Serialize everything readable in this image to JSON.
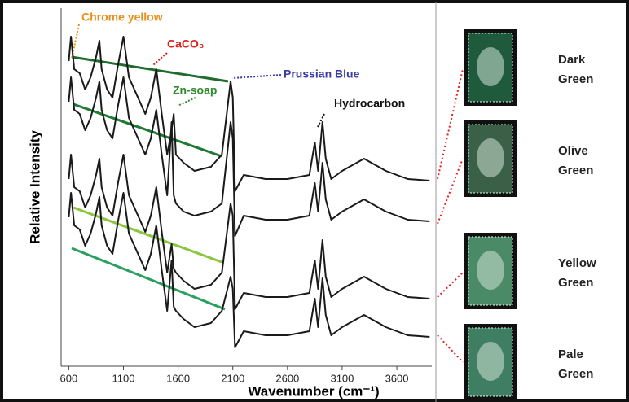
{
  "chart_data": {
    "type": "line",
    "x_label": "Wavenumber (cm⁻¹)",
    "y_label": "Relative Intensity",
    "xlim": [
      530,
      3920
    ],
    "ylim": [
      0,
      440
    ],
    "xticks": [
      600,
      1100,
      1600,
      2100,
      2600,
      3100,
      3600
    ],
    "x": [
      600,
      620,
      650,
      700,
      750,
      800,
      850,
      880,
      900,
      950,
      1000,
      1050,
      1100,
      1150,
      1200,
      1300,
      1350,
      1400,
      1450,
      1500,
      1540,
      1560,
      1580,
      1650,
      1750,
      1900,
      2000,
      2080,
      2100,
      2120,
      2200,
      2400,
      2600,
      2800,
      2850,
      2880,
      2920,
      2950,
      3000,
      3100,
      3300,
      3500,
      3700,
      3900
    ],
    "series": [
      {
        "color": "#1a1a1a",
        "values": [
          375,
          405,
          365,
          360,
          340,
          355,
          380,
          400,
          365,
          340,
          330,
          370,
          405,
          355,
          340,
          310,
          330,
          365,
          310,
          260,
          290,
          310,
          260,
          250,
          240,
          245,
          260,
          350,
          330,
          215,
          235,
          230,
          230,
          235,
          275,
          240,
          300,
          255,
          230,
          240,
          255,
          240,
          230,
          228
        ]
      },
      {
        "color": "#1a1a1a",
        "values": [
          325,
          355,
          315,
          310,
          290,
          305,
          330,
          350,
          315,
          290,
          280,
          320,
          355,
          305,
          290,
          260,
          280,
          315,
          260,
          210,
          300,
          210,
          200,
          190,
          185,
          190,
          200,
          300,
          280,
          160,
          185,
          180,
          180,
          185,
          225,
          190,
          250,
          205,
          180,
          190,
          205,
          190,
          180,
          178
        ]
      },
      {
        "color": "#1a1a1a",
        "values": [
          230,
          260,
          220,
          215,
          195,
          210,
          235,
          255,
          220,
          195,
          185,
          225,
          260,
          210,
          195,
          165,
          185,
          220,
          165,
          115,
          150,
          120,
          115,
          105,
          95,
          100,
          115,
          200,
          185,
          70,
          90,
          85,
          85,
          90,
          130,
          95,
          155,
          110,
          85,
          95,
          110,
          95,
          85,
          83
        ]
      },
      {
        "color": "#1a1a1a",
        "values": [
          183,
          213,
          173,
          168,
          148,
          163,
          188,
          208,
          173,
          148,
          138,
          178,
          213,
          163,
          148,
          118,
          138,
          173,
          118,
          68,
          130,
          73,
          68,
          58,
          48,
          53,
          68,
          110,
          95,
          23,
          43,
          38,
          38,
          43,
          83,
          48,
          108,
          63,
          38,
          48,
          63,
          48,
          38,
          36
        ]
      }
    ],
    "annotations": [
      {
        "text": "Chrome yellow",
        "color": "#e8901a"
      },
      {
        "text": "CaCO₃",
        "color": "#e0201a"
      },
      {
        "text": "Prussian Blue",
        "color": "#3a3aa8"
      },
      {
        "text": "Zn-soap",
        "color": "#2e8b2e"
      },
      {
        "text": "Hydrocarbon",
        "color": "#111111"
      }
    ]
  },
  "stamps": [
    {
      "label": [
        "Dark",
        "Green"
      ],
      "color": "#1f5a3c"
    },
    {
      "label": [
        "Olive",
        "Green"
      ],
      "color": "#3a6048"
    },
    {
      "label": [
        "Yellow",
        "Green"
      ],
      "color": "#4a8a66"
    },
    {
      "label": [
        "Pale",
        "Green"
      ],
      "color": "#3f7e62"
    }
  ]
}
